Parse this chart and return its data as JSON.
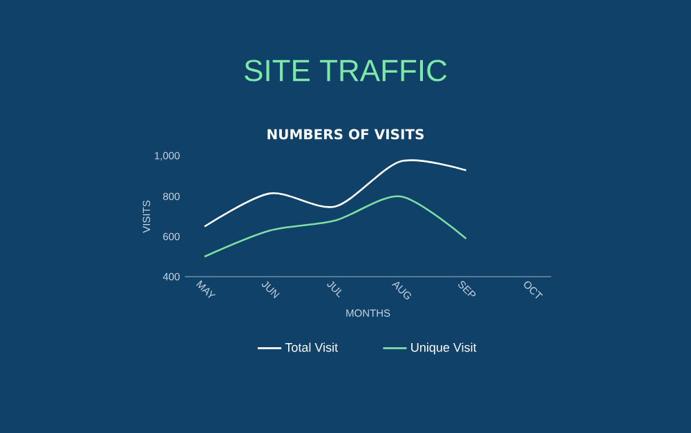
{
  "chart_data": {
    "type": "line",
    "title": "SITE TRAFFIC",
    "subtitle": "NUMBERS OF VISITS",
    "xlabel": "MONTHS",
    "ylabel": "VISITS",
    "categories": [
      "MAY",
      "JUN",
      "JUL",
      "AUG",
      "SEP",
      "OCT"
    ],
    "series": [
      {
        "name": "Total Visit",
        "color": "#ffffff",
        "values": [
          650,
          815,
          750,
          975,
          930,
          null
        ]
      },
      {
        "name": "Unique Visit",
        "color": "#7ee0a4",
        "values": [
          500,
          630,
          680,
          800,
          590,
          null
        ]
      }
    ],
    "ylim": [
      400,
      1000
    ],
    "yticks": [
      400,
      600,
      800,
      {
        "value": 1000,
        "label": "1,000"
      }
    ],
    "grid": false,
    "legend": "bottom",
    "marker": "none",
    "line_style": "solid"
  }
}
